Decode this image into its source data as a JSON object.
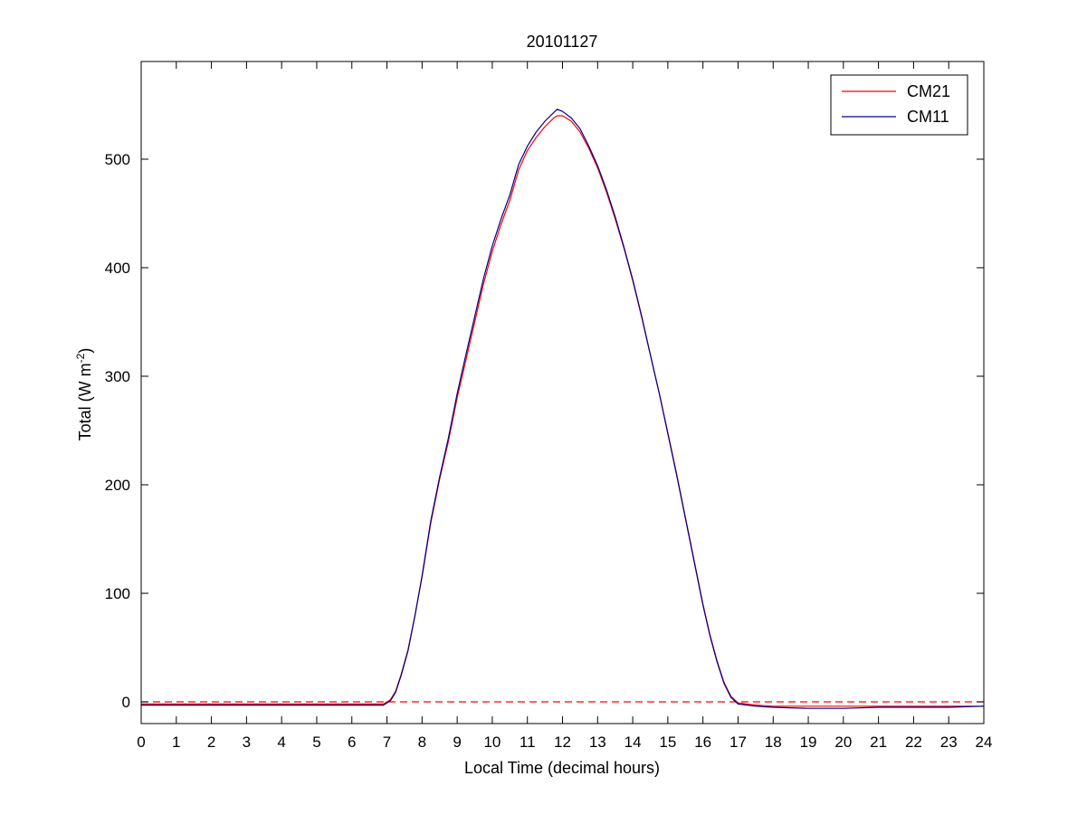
{
  "chart_data": {
    "type": "line",
    "title": "20101127",
    "xlabel": "Local Time (decimal hours)",
    "ylabel_main": "Total (W m",
    "ylabel_sup": "-2",
    "ylabel_close": ")",
    "xlim": [
      0,
      24
    ],
    "ylim": [
      -20,
      590
    ],
    "xticks": [
      0,
      1,
      2,
      3,
      4,
      5,
      6,
      7,
      8,
      9,
      10,
      11,
      12,
      13,
      14,
      15,
      16,
      17,
      18,
      19,
      20,
      21,
      22,
      23,
      24
    ],
    "yticks": [
      0,
      100,
      200,
      300,
      400,
      500
    ],
    "grid": false,
    "legend_position": "top-right",
    "reference_line": {
      "y": 0,
      "color": "#ff0000",
      "style": "dashed"
    },
    "series": [
      {
        "name": "CM21",
        "color": "#ff0000",
        "x": [
          0,
          1,
          2,
          3,
          4,
          5,
          6,
          6.9,
          7.1,
          7.25,
          7.4,
          7.6,
          7.8,
          8.0,
          8.25,
          8.5,
          8.75,
          9.0,
          9.25,
          9.5,
          9.75,
          10.0,
          10.25,
          10.5,
          10.75,
          11.0,
          11.25,
          11.5,
          11.75,
          11.85,
          12.0,
          12.25,
          12.5,
          12.75,
          13.0,
          13.25,
          13.5,
          13.75,
          14.0,
          14.25,
          14.5,
          14.75,
          15.0,
          15.25,
          15.5,
          15.75,
          16.0,
          16.2,
          16.4,
          16.6,
          16.8,
          17.0,
          17.5,
          18,
          19,
          20,
          21,
          22,
          23,
          24
        ],
        "y": [
          -2,
          -2,
          -2,
          -2,
          -2,
          -2,
          -2,
          -2,
          2,
          10,
          25,
          48,
          80,
          115,
          165,
          205,
          240,
          280,
          315,
          350,
          385,
          415,
          440,
          462,
          490,
          508,
          520,
          530,
          538,
          540,
          540,
          535,
          525,
          510,
          492,
          470,
          445,
          418,
          388,
          355,
          320,
          285,
          248,
          210,
          170,
          130,
          90,
          62,
          38,
          18,
          5,
          -1,
          -3,
          -4,
          -4,
          -4,
          -4,
          -4,
          -4,
          -4
        ]
      },
      {
        "name": "CM11",
        "color": "#00008b",
        "x": [
          0,
          1,
          2,
          3,
          4,
          5,
          6,
          6.9,
          7.1,
          7.25,
          7.4,
          7.6,
          7.8,
          8.0,
          8.25,
          8.5,
          8.75,
          9.0,
          9.25,
          9.5,
          9.75,
          10.0,
          10.25,
          10.5,
          10.75,
          11.0,
          11.25,
          11.5,
          11.75,
          11.85,
          12.0,
          12.25,
          12.5,
          12.75,
          13.0,
          13.25,
          13.5,
          13.75,
          14.0,
          14.25,
          14.5,
          14.75,
          15.0,
          15.25,
          15.5,
          15.75,
          16.0,
          16.2,
          16.4,
          16.6,
          16.8,
          17.0,
          17.5,
          18,
          19,
          20,
          21,
          22,
          23,
          24
        ],
        "y": [
          -3,
          -3,
          -3,
          -3,
          -3,
          -3,
          -3,
          -3,
          1,
          9,
          24,
          47,
          80,
          116,
          167,
          207,
          243,
          284,
          320,
          355,
          390,
          420,
          445,
          467,
          495,
          512,
          525,
          535,
          543,
          546,
          544,
          538,
          528,
          512,
          494,
          472,
          447,
          419,
          389,
          356,
          320,
          285,
          247,
          209,
          169,
          129,
          89,
          61,
          37,
          17,
          4,
          -2,
          -4,
          -5,
          -6,
          -6,
          -5,
          -5,
          -5,
          -4
        ]
      }
    ]
  }
}
